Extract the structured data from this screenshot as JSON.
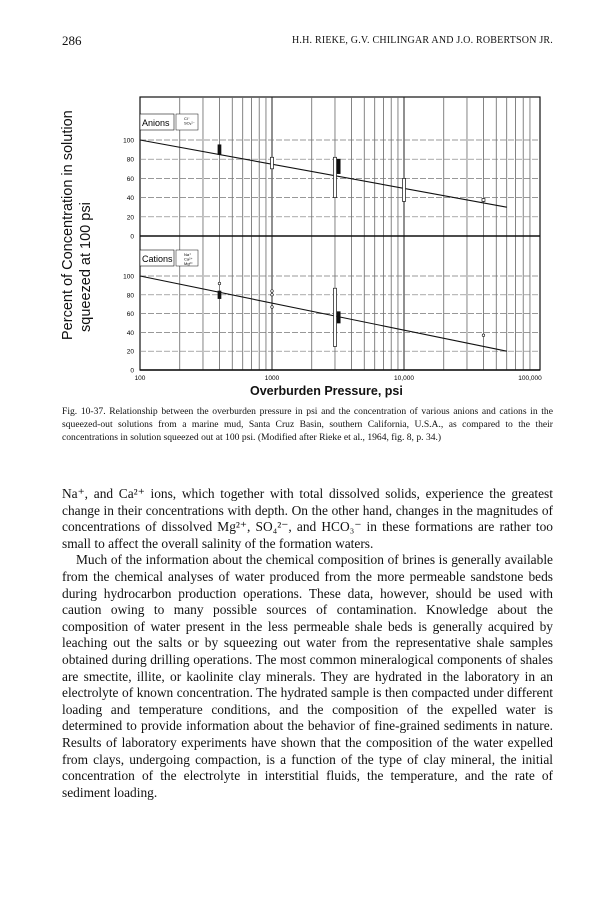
{
  "header": {
    "page_number": "286",
    "authors": "H.H. RIEKE, G.V. CHILINGAR AND J.O. ROBERTSON JR."
  },
  "figure": {
    "y_label_line1": "Percent of Concentration in solution",
    "y_label_line2": "squeezed at 100 psi",
    "x_title": "Overburden Pressure, psi",
    "caption": "Fig. 10-37. Relationship between the overburden pressure in psi and the concentration of various anions and cations in the squeezed-out solutions from a marine mud, Santa Cruz Basin, southern California, U.S.A., as compared to the their concentrations in solution squeezed out at 100 psi. (Modified after Rieke et al., 1964, fig. 8, p. 34.)"
  },
  "chart_data": [
    {
      "type": "line",
      "panel": "Anions",
      "legend": [
        "Cl⁻",
        "SO₄²⁻"
      ],
      "x_scale": "log",
      "xlim": [
        100,
        100000
      ],
      "ylim": [
        0,
        100
      ],
      "yticks": [
        0,
        20,
        40,
        60,
        80,
        100
      ],
      "grid": true,
      "trend": {
        "x": [
          100,
          60000
        ],
        "y": [
          100,
          30
        ]
      },
      "ranges": [
        {
          "x": 400,
          "low": 85,
          "high": 95,
          "series": "SO₄²⁻"
        },
        {
          "x": 1000,
          "low": 70,
          "high": 82,
          "series": "Cl⁻"
        },
        {
          "x": 3000,
          "low": 40,
          "high": 82,
          "series": "Cl⁻"
        },
        {
          "x": 3200,
          "low": 65,
          "high": 80,
          "series": "SO₄²⁻"
        },
        {
          "x": 10000,
          "low": 36,
          "high": 60,
          "series": "Cl⁻"
        },
        {
          "x": 40000,
          "low": 36,
          "high": 39,
          "series": "Cl⁻"
        }
      ]
    },
    {
      "type": "line",
      "panel": "Cations",
      "legend": [
        "Na⁺",
        "Ca²⁺",
        "Mg²⁺"
      ],
      "x_scale": "log",
      "xlim": [
        100,
        100000
      ],
      "ylim": [
        0,
        100
      ],
      "yticks": [
        0,
        20,
        40,
        60,
        80,
        100
      ],
      "xticks": [
        "100",
        "1000",
        "10,000",
        "100,000"
      ],
      "grid": true,
      "trend": {
        "x": [
          100,
          60000
        ],
        "y": [
          100,
          20
        ]
      },
      "ranges": [
        {
          "x": 400,
          "low": 76,
          "high": 84,
          "series": "Ca²⁺"
        },
        {
          "x": 3000,
          "low": 25,
          "high": 87,
          "series": "Na⁺"
        },
        {
          "x": 3200,
          "low": 50,
          "high": 62,
          "series": "Ca²⁺"
        }
      ],
      "points": [
        {
          "x": 400,
          "y": 92
        },
        {
          "x": 1000,
          "y": 84
        },
        {
          "x": 1000,
          "y": 80
        },
        {
          "x": 1000,
          "y": 67
        },
        {
          "x": 40000,
          "y": 37
        }
      ]
    }
  ],
  "body": {
    "p1": "Na⁺, and Ca²⁺ ions, which together with total dissolved solids, experience the greatest change in their concentrations with depth. On the other hand, changes in the magnitudes of concentrations of dissolved Mg²⁺, SO₄²⁻, and HCO₃⁻ in these formations are rather too small to affect the overall salinity of the formation waters.",
    "p2": "Much of the information about the chemical composition of brines is generally available from the chemical analyses of water produced from the more permeable sandstone beds during hydrocarbon production operations. These data, however, should be used with caution owing to many possible sources of contamination. Knowledge about the composition of water present in the less permeable shale beds is generally acquired by leaching out the salts or by squeezing out water from the representative shale samples obtained during drilling operations. The most common mineralogical components of shales are smectite, illite, or kaolinite clay minerals. They are hydrated in the laboratory in an electrolyte of known concentration. The hydrated sample is then compacted under different loading and temperature conditions, and the composition of the expelled water is determined to provide information about the behavior of fine-grained sediments in nature. Results of laboratory experiments have shown that the composition of the water expelled from clays, undergoing compaction, is a function of the type of clay mineral, the initial concentration of the electrolyte in interstitial fluids, the temperature, and the rate of sediment loading."
  }
}
